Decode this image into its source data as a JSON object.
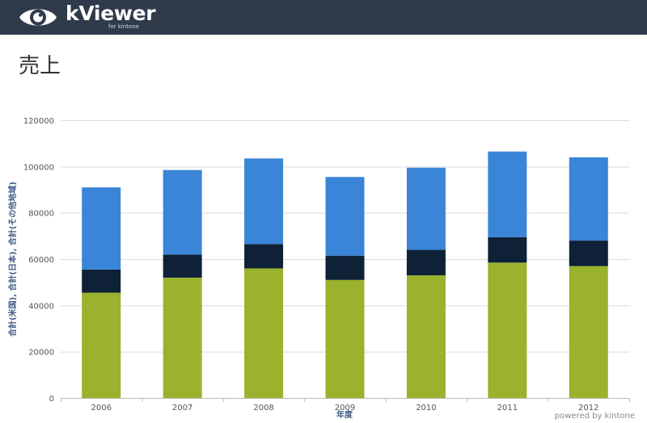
{
  "app": {
    "name": "kViewer",
    "subtitle": "for kintone",
    "logo_icon": "eye-icon"
  },
  "page": {
    "title": "売上"
  },
  "footer": {
    "powered_by": "powered by kintone"
  },
  "colors": {
    "header_bg": "#2f3a4b",
    "green": "#9ab22e",
    "navy": "#0e2137",
    "blue": "#3a85d8",
    "grid": "#d9d9d9",
    "axis_label": "#3e5a85"
  },
  "chart_data": {
    "type": "bar",
    "stacked": true,
    "categories": [
      "2006",
      "2007",
      "2008",
      "2009",
      "2010",
      "2011",
      "2012"
    ],
    "series": [
      {
        "name": "合計(米国)",
        "color": "#9ab22e",
        "values": [
          45500,
          52000,
          56000,
          51000,
          53000,
          58500,
          57000
        ]
      },
      {
        "name": "合計(日本)",
        "color": "#0e2137",
        "values": [
          10000,
          10000,
          10500,
          10500,
          11000,
          11000,
          11000
        ]
      },
      {
        "name": "合計(その他地域)",
        "color": "#3a85d8",
        "values": [
          35500,
          36500,
          37000,
          34000,
          35500,
          37000,
          36000
        ]
      }
    ],
    "xlabel": "年度",
    "ylabel": "合計(米国), 合計(日本), 合計(その他地域)",
    "ylim": [
      0,
      120000
    ],
    "yticks": [
      "0",
      "20000",
      "40000",
      "60000",
      "80000",
      "100000",
      "120000"
    ],
    "grid": true,
    "legend": "none"
  }
}
